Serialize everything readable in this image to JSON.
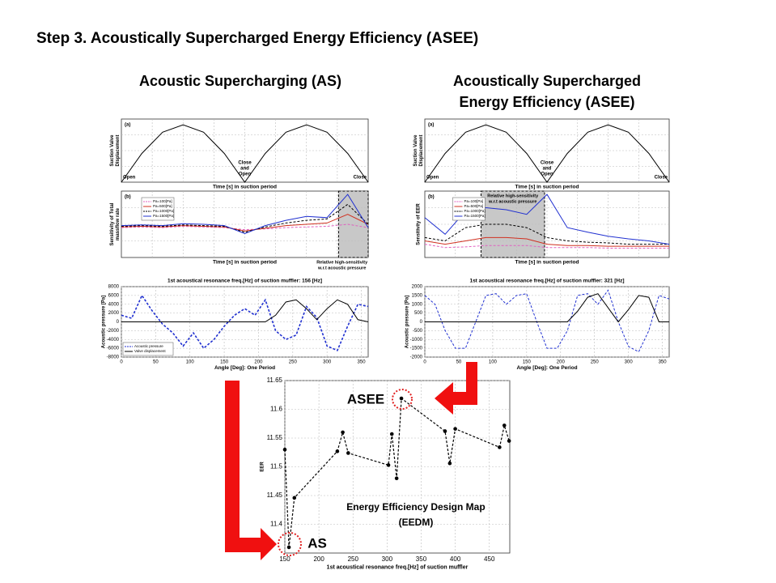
{
  "slide": {
    "title": "Step 3. Acoustically Supercharged Energy Efficiency (ASEE)",
    "headings": [
      "Acoustic Supercharging (AS)",
      [
        "Acoustically Supercharged",
        "Energy Efficiency (ASEE)"
      ]
    ]
  },
  "chart_data": [
    {
      "type": "line",
      "label": "(a)",
      "xlabel": "Time [s] in suction period",
      "ylabel": [
        "Suction Valve",
        "Displacement"
      ],
      "xlim": [
        0,
        1
      ],
      "ylim": [
        0,
        1.1
      ],
      "grid": true,
      "x": [
        0,
        0.083,
        0.167,
        0.25,
        0.333,
        0.417,
        0.5,
        0.583,
        0.667,
        0.75,
        0.833,
        0.917,
        1
      ],
      "series": [
        {
          "color": "#000000",
          "style": "solid",
          "values": [
            0,
            0.5,
            0.87,
            1,
            0.87,
            0.5,
            0,
            0.5,
            0.87,
            1,
            0.87,
            0.5,
            0
          ]
        }
      ],
      "annotations": [
        "Open",
        [
          "Close",
          "and",
          "Open"
        ],
        "Close"
      ]
    },
    {
      "type": "line",
      "label": "(b)",
      "xlabel": "Time [s] in suction period",
      "ylabel": [
        "Sensitivity of Total",
        "massflow rate"
      ],
      "xlim": [
        0,
        1
      ],
      "ylim": [
        0,
        1
      ],
      "grid": true,
      "shade": [
        0.88,
        1
      ],
      "legend": "upper left",
      "x": [
        0,
        0.083,
        0.167,
        0.25,
        0.333,
        0.417,
        0.5,
        0.583,
        0.667,
        0.75,
        0.833,
        0.917,
        1
      ],
      "series": [
        {
          "name": "Pa=100[Pa]",
          "color": "#e060c0",
          "style": "dashed",
          "values": [
            0.45,
            0.46,
            0.45,
            0.47,
            0.46,
            0.45,
            0.42,
            0.43,
            0.45,
            0.46,
            0.47,
            0.5,
            0.45
          ]
        },
        {
          "name": "Pa=500[Pa]",
          "color": "#d03020",
          "style": "solid",
          "values": [
            0.46,
            0.47,
            0.46,
            0.48,
            0.47,
            0.46,
            0.4,
            0.44,
            0.48,
            0.5,
            0.52,
            0.65,
            0.5
          ]
        },
        {
          "name": "Pa=1000[Pa]",
          "color": "#000000",
          "style": "dashed",
          "values": [
            0.47,
            0.48,
            0.47,
            0.49,
            0.48,
            0.47,
            0.38,
            0.46,
            0.52,
            0.56,
            0.58,
            0.8,
            0.5
          ]
        },
        {
          "name": "Pa=1500[Pa]",
          "color": "#2030d0",
          "style": "solid",
          "values": [
            0.48,
            0.49,
            0.48,
            0.51,
            0.5,
            0.48,
            0.36,
            0.48,
            0.56,
            0.62,
            0.6,
            0.95,
            0.45
          ]
        }
      ],
      "annotations": [
        [
          "Relative high-sensitivity",
          "w.r.t acoustic pressure"
        ]
      ]
    },
    {
      "type": "line",
      "title": "1st acoustical resonance freq.[Hz] of suction muffler: 156 [Hz]",
      "xlabel": "Angle [Deg]: One Period",
      "ylabel": [
        "Acoustic pressure [Pa]"
      ],
      "xlim": [
        0,
        360
      ],
      "ylim": [
        -8000,
        8000
      ],
      "grid": true,
      "legend": "lower left",
      "xticks": [
        0,
        50,
        100,
        150,
        200,
        250,
        300,
        350
      ],
      "yticks": [
        -8000,
        -6000,
        -4000,
        -2000,
        0,
        2000,
        4000,
        6000,
        8000
      ],
      "x": [
        0,
        15,
        30,
        45,
        60,
        75,
        90,
        105,
        120,
        135,
        150,
        165,
        180,
        195,
        210,
        225,
        240,
        255,
        270,
        285,
        300,
        315,
        330,
        345,
        360
      ],
      "series": [
        {
          "name": "Acoustic pressure",
          "color": "#2030d0",
          "style": "dashed",
          "values": [
            1500,
            800,
            6000,
            2500,
            -500,
            -2500,
            -5500,
            -2500,
            -6000,
            -4000,
            -1000,
            1500,
            3000,
            1500,
            5000,
            -2000,
            -4000,
            -3000,
            3500,
            1000,
            -5500,
            -6500,
            -1000,
            4000,
            3500
          ]
        },
        {
          "name": "Valve displacement",
          "color": "#000000",
          "style": "solid",
          "values": [
            0,
            0,
            0,
            0,
            0,
            0,
            0,
            0,
            0,
            0,
            0,
            0,
            0,
            0,
            0,
            1500,
            4500,
            5000,
            3000,
            500,
            3000,
            5000,
            4000,
            500,
            0
          ]
        }
      ]
    },
    {
      "type": "line",
      "label": "(a)",
      "xlabel": "Time [s] in suction period",
      "ylabel": [
        "Suction Valve",
        "Displacement"
      ],
      "xlim": [
        0,
        1
      ],
      "ylim": [
        0,
        1.1
      ],
      "grid": true,
      "x": [
        0,
        0.083,
        0.167,
        0.25,
        0.333,
        0.417,
        0.5,
        0.583,
        0.667,
        0.75,
        0.833,
        0.917,
        1
      ],
      "series": [
        {
          "color": "#000000",
          "style": "solid",
          "values": [
            0,
            0.5,
            0.87,
            1,
            0.87,
            0.5,
            0,
            0.5,
            0.87,
            1,
            0.87,
            0.5,
            0
          ]
        }
      ],
      "annotations": [
        "Open",
        [
          "Close",
          "and",
          "Open"
        ],
        "Close"
      ]
    },
    {
      "type": "line",
      "label": "(b)",
      "xlabel": "Time [s] in suction period",
      "ylabel": [
        "Sensitivity of EER"
      ],
      "xlim": [
        0,
        1
      ],
      "ylim": [
        0,
        1
      ],
      "grid": true,
      "shade": [
        0.23,
        0.49
      ],
      "legend": "upper left",
      "x": [
        0,
        0.083,
        0.167,
        0.25,
        0.333,
        0.417,
        0.5,
        0.583,
        0.667,
        0.75,
        0.833,
        0.917,
        1
      ],
      "series": [
        {
          "name": "Pa=100[Pa]",
          "color": "#e060c0",
          "style": "dashed",
          "values": [
            0.2,
            0.15,
            0.16,
            0.18,
            0.18,
            0.18,
            0.15,
            0.15,
            0.15,
            0.14,
            0.14,
            0.14,
            0.14
          ]
        },
        {
          "name": "Pa=500[Pa]",
          "color": "#d03020",
          "style": "solid",
          "values": [
            0.25,
            0.2,
            0.25,
            0.3,
            0.3,
            0.28,
            0.2,
            0.18,
            0.18,
            0.17,
            0.17,
            0.17,
            0.17
          ]
        },
        {
          "name": "Pa=1000[Pa]",
          "color": "#000000",
          "style": "dashed",
          "values": [
            0.3,
            0.25,
            0.45,
            0.5,
            0.5,
            0.45,
            0.3,
            0.25,
            0.23,
            0.22,
            0.2,
            0.2,
            0.2
          ]
        },
        {
          "name": "Pa=1500[Pa]",
          "color": "#2030d0",
          "style": "solid",
          "values": [
            0.6,
            0.35,
            0.7,
            0.75,
            0.72,
            0.65,
            0.95,
            0.45,
            0.38,
            0.32,
            0.28,
            0.25,
            0.2
          ]
        }
      ],
      "annotations": [
        [
          "Relative high-sensitivity",
          "w.r.t acoustic pressure"
        ]
      ]
    },
    {
      "type": "line",
      "title": "1st acoustical resonance freq.[Hz] of suction muffler: 321 [Hz]",
      "xlabel": "Angle [Deg]: One Period",
      "ylabel": [
        "Acoustic pressure [Pa]"
      ],
      "xlim": [
        0,
        360
      ],
      "ylim": [
        -2000,
        2000
      ],
      "grid": true,
      "xticks": [
        0,
        50,
        100,
        150,
        200,
        250,
        300,
        350
      ],
      "yticks": [
        -2000,
        -1500,
        -1000,
        -500,
        0,
        500,
        1000,
        1500,
        2000
      ],
      "x": [
        0,
        15,
        30,
        45,
        60,
        75,
        90,
        105,
        120,
        135,
        150,
        165,
        180,
        195,
        210,
        225,
        240,
        255,
        270,
        285,
        300,
        315,
        330,
        345,
        360
      ],
      "series": [
        {
          "color": "#2030d0",
          "style": "dashed",
          "values": [
            1500,
            1000,
            -500,
            -1500,
            -1500,
            0,
            1500,
            1600,
            1000,
            1500,
            1600,
            0,
            -1500,
            -1500,
            -500,
            1500,
            1600,
            1000,
            1800,
            0,
            -1400,
            -1700,
            -500,
            1500,
            1300
          ]
        },
        {
          "color": "#000000",
          "style": "solid",
          "values": [
            0,
            0,
            0,
            0,
            0,
            0,
            0,
            0,
            0,
            0,
            0,
            0,
            0,
            0,
            0,
            600,
            1400,
            1600,
            800,
            0,
            700,
            1500,
            1400,
            0,
            0
          ]
        }
      ]
    },
    {
      "type": "scatter",
      "xlabel": "1st acoustical resonance freq.[Hz] of suction muffler",
      "ylabel": [
        "EER"
      ],
      "xlim": [
        150,
        480
      ],
      "ylim": [
        11.35,
        11.65
      ],
      "grid": true,
      "xticks": [
        150,
        200,
        250,
        300,
        350,
        400,
        450
      ],
      "yticks": [
        11.4,
        11.45,
        11.5,
        11.55,
        11.6,
        11.65
      ],
      "x": [
        150,
        156,
        164,
        227,
        235,
        243,
        302,
        307,
        314,
        321,
        385,
        392,
        400,
        465,
        472,
        479
      ],
      "series": [
        {
          "color": "#000000",
          "style": "dashed",
          "values": [
            11.53,
            11.36,
            11.446,
            11.527,
            11.56,
            11.524,
            11.503,
            11.557,
            11.48,
            11.619,
            11.562,
            11.506,
            11.566,
            11.534,
            11.572,
            11.545
          ]
        }
      ],
      "annotations": [
        "ASEE",
        "AS",
        [
          "Energy Efficiency Design Map",
          "(EEDM)"
        ]
      ]
    }
  ]
}
